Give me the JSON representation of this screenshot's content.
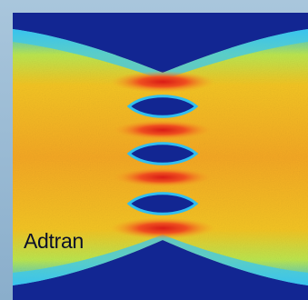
{
  "image": {
    "subject": "eye-diagram",
    "palette": {
      "background_blue": "#0b1f8f",
      "hot_red": "#e8241c",
      "orange": "#f7a11a",
      "yellow": "#f5e320",
      "cyan": "#29c7f2",
      "frame_blue": "#8fb3cf"
    }
  },
  "brand": {
    "logo_text": "Adtran",
    "logo_icon": "adtran-logo"
  }
}
